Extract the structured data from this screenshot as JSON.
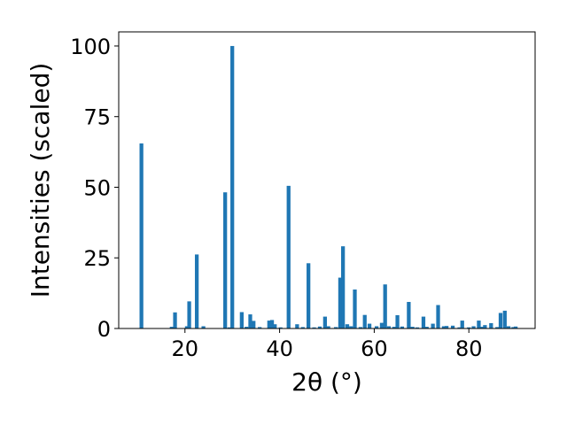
{
  "chart_data": {
    "type": "bar",
    "xlabel": "2θ (°)",
    "ylabel": "Intensities (scaled)",
    "xlim": [
      6,
      94
    ],
    "ylim": [
      0,
      105
    ],
    "xticks": [
      "20",
      "40",
      "60",
      "80"
    ],
    "xtick_values": [
      20,
      40,
      60,
      80
    ],
    "yticks": [
      "0",
      "25",
      "50",
      "75",
      "100"
    ],
    "ytick_values": [
      0,
      25,
      50,
      75,
      100
    ],
    "grid": false,
    "bar_color": "#1f77b4",
    "bar_width": 0.8,
    "x": [
      10.8,
      17.2,
      17.9,
      20.4,
      20.9,
      22.5,
      23.9,
      28.5,
      29.4,
      30.0,
      32.0,
      33.0,
      33.8,
      34.5,
      35.8,
      37.8,
      38.4,
      39.0,
      40.2,
      41.9,
      43.7,
      44.9,
      46.1,
      47.3,
      48.5,
      49.6,
      50.3,
      51.9,
      52.8,
      53.4,
      54.3,
      55.1,
      55.9,
      57.1,
      58.0,
      59.0,
      60.5,
      61.6,
      62.3,
      63.1,
      64.2,
      64.9,
      65.9,
      67.3,
      68.1,
      69.1,
      70.4,
      71.1,
      72.4,
      73.5,
      74.7,
      75.3,
      76.6,
      78.0,
      78.6,
      80.0,
      81.0,
      82.1,
      82.8,
      83.4,
      84.7,
      86.0,
      86.7,
      87.6,
      88.4,
      89.4,
      89.9
    ],
    "values": [
      65.5,
      0.6,
      5.7,
      0.8,
      9.6,
      26.2,
      0.8,
      48.2,
      0.4,
      100.0,
      5.8,
      0.6,
      5.0,
      2.7,
      0.5,
      2.8,
      3.0,
      1.5,
      0.4,
      50.5,
      1.5,
      0.5,
      23.1,
      0.4,
      0.7,
      4.2,
      0.8,
      0.5,
      18.0,
      29.1,
      1.5,
      0.8,
      13.8,
      0.5,
      4.8,
      1.7,
      0.8,
      2.0,
      15.6,
      0.8,
      0.6,
      4.7,
      0.7,
      9.4,
      0.6,
      0.4,
      4.2,
      0.6,
      1.7,
      8.3,
      0.8,
      0.9,
      1.0,
      0.4,
      2.8,
      0.4,
      0.8,
      2.8,
      0.6,
      1.2,
      1.9,
      0.5,
      5.5,
      6.3,
      0.8,
      0.5,
      0.7
    ]
  }
}
